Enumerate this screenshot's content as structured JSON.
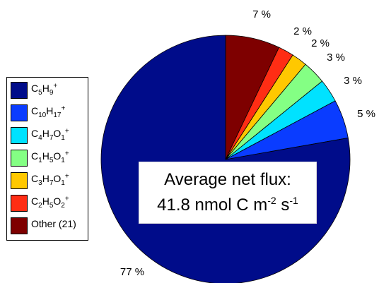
{
  "chart_data": {
    "type": "pie",
    "slices": [
      {
        "label": "C5H9+",
        "value": 77,
        "value_label": "77 %",
        "color": "#000c8a"
      },
      {
        "label": "C10H17+",
        "value": 5,
        "value_label": "5 %",
        "color": "#0a3cff"
      },
      {
        "label": "C4H7O1+",
        "value": 3,
        "value_label": "3 %",
        "color": "#00e2ff"
      },
      {
        "label": "C1H5O1+",
        "value": 3,
        "value_label": "3 %",
        "color": "#84ff84"
      },
      {
        "label": "C3H7O1+",
        "value": 2,
        "value_label": "2 %",
        "color": "#ffc800"
      },
      {
        "label": "C2H5O2+",
        "value": 2,
        "value_label": "2 %",
        "color": "#ff2d14"
      },
      {
        "label": "Other (21)",
        "value": 7,
        "value_label": "7 %",
        "color": "#7e0000"
      }
    ],
    "annotation_line1": "Average net flux:",
    "annotation_line2_prefix": "41.8 nmol C m",
    "annotation_exp1": "-2",
    "annotation_mid": " s",
    "annotation_exp2": "-1"
  },
  "legend": {
    "items": [
      {
        "html": "C<sub>5</sub>H<sub>9</sub><sup>+</sup>",
        "color": "#000c8a"
      },
      {
        "html": "C<sub>10</sub>H<sub>17</sub><sup>+</sup>",
        "color": "#0a3cff"
      },
      {
        "html": "C<sub>4</sub>H<sub>7</sub>O<sub>1</sub><sup>+</sup>",
        "color": "#00e2ff"
      },
      {
        "html": "C<sub>1</sub>H<sub>5</sub>O<sub>1</sub><sup>+</sup>",
        "color": "#84ff84"
      },
      {
        "html": "C<sub>3</sub>H<sub>7</sub>O<sub>1</sub><sup>+</sup>",
        "color": "#ffc800"
      },
      {
        "html": "C<sub>2</sub>H<sub>5</sub>O<sub>2</sub><sup>+</sup>",
        "color": "#ff2d14"
      },
      {
        "html": "Other (21)",
        "color": "#7e0000"
      }
    ]
  }
}
